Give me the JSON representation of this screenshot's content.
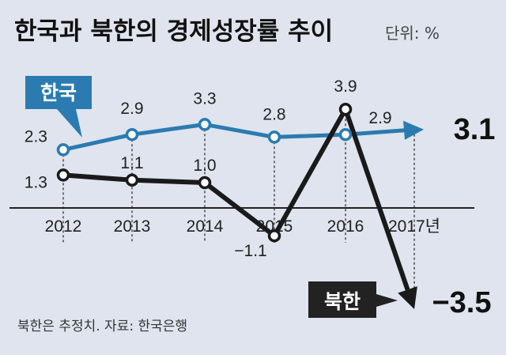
{
  "chart_data": {
    "type": "line",
    "title": "한국과 북한의 경제성장률 추이",
    "unit": "단위: %",
    "categories": [
      "2012",
      "2013",
      "2014",
      "2015",
      "2016",
      "2017년"
    ],
    "series": [
      {
        "name": "한국",
        "values": [
          2.3,
          2.9,
          3.3,
          2.8,
          2.9,
          3.1
        ],
        "labels": [
          "2.3",
          "2.9",
          "3.3",
          "2.8",
          "2.9",
          "3.1"
        ],
        "color": "#2b7bb0"
      },
      {
        "name": "북한",
        "values": [
          1.3,
          1.1,
          1.0,
          -1.1,
          3.9,
          -3.5
        ],
        "labels": [
          "1.3",
          "1.1",
          "1.0",
          "−1.1",
          "3.9",
          "−3.5"
        ],
        "color": "#1a1a1a"
      }
    ],
    "ylim": [
      -3.5,
      4.5
    ],
    "note": "북한은 추정치. 자료: 한국은행"
  },
  "colors": {
    "background": "#dfe4ee",
    "korea": "#2b7bb0",
    "north": "#1a1a1a",
    "tag_dark": "#222222"
  }
}
